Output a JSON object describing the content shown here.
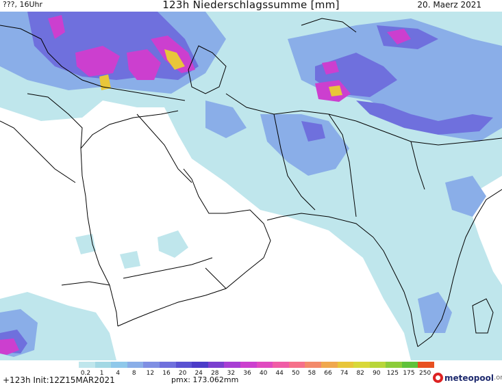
{
  "header": {
    "left": "???, 16Uhr",
    "title": "123h Niederschlagssumme [mm]",
    "right": "20. Maerz 2021"
  },
  "legend": {
    "labels": [
      "0.2",
      "1",
      "4",
      "8",
      "12",
      "16",
      "20",
      "24",
      "28",
      "32",
      "36",
      "40",
      "44",
      "50",
      "58",
      "66",
      "74",
      "82",
      "90",
      "125",
      "175",
      "250"
    ],
    "colors": [
      "#bfe6ec",
      "#a3d8e4",
      "#8fc8ea",
      "#8aaee8",
      "#7f8fe3",
      "#6f70dd",
      "#5a52d2",
      "#4b3cc8",
      "#7a3fcf",
      "#a83ed4",
      "#cc3fcf",
      "#e04ac0",
      "#f05ca6",
      "#f6708a",
      "#f38a6a",
      "#f0a84e",
      "#e8c63a",
      "#d8d83a",
      "#b8d63a",
      "#8ccc3a",
      "#5fc23a",
      "#e85020"
    ]
  },
  "footer": {
    "init": "+123h Init:12Z15MAR2021",
    "pmx": "pmx: 173.062mm",
    "logo_name": "meteopool",
    "logo_tld": ".org"
  },
  "map": {
    "land_color": "#ffffff",
    "rain_light": "#bfe6ec",
    "rain_mid": "#8aaee8",
    "rain_heavy": "#6f70dd",
    "rain_intense": "#cc3fcf",
    "rain_extreme": "#e8c63a",
    "border_color": "#000000"
  }
}
